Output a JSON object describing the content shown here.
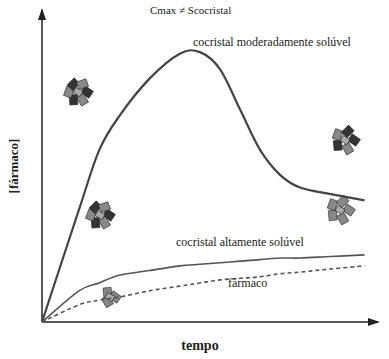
{
  "chart_data": {
    "type": "line",
    "x_label": "tempo",
    "y_label": "[fármaco]",
    "annotations": [
      "Cmax ≠ Scocristal"
    ],
    "x": [
      0,
      11,
      17,
      23,
      32,
      41,
      47,
      53,
      59,
      65,
      71,
      77,
      86,
      96
    ],
    "xlim": [
      0,
      100
    ],
    "ylim": [
      0,
      100
    ],
    "tick_labels": false,
    "series": [
      {
        "name": "cocristal moderadamente solúvel",
        "color": "#444444",
        "line_style": "solid",
        "values": [
          0,
          36,
          55,
          66,
          78,
          86,
          86.5,
          81,
          68,
          55,
          47,
          43,
          41,
          39
        ]
      },
      {
        "name": "cocristal altamente solúvel",
        "color": "#555555",
        "line_style": "solid",
        "values": [
          0,
          10,
          12.5,
          15,
          16.5,
          18,
          18.5,
          19,
          19.5,
          20,
          20.5,
          20.5,
          21,
          21.5
        ]
      },
      {
        "name": "fármaco",
        "color": "#555555",
        "line_style": "dashed",
        "values": [
          0,
          5.5,
          7,
          8,
          10,
          11.5,
          12.5,
          13.5,
          14,
          14.5,
          15.5,
          16,
          17,
          18
        ]
      }
    ]
  }
}
